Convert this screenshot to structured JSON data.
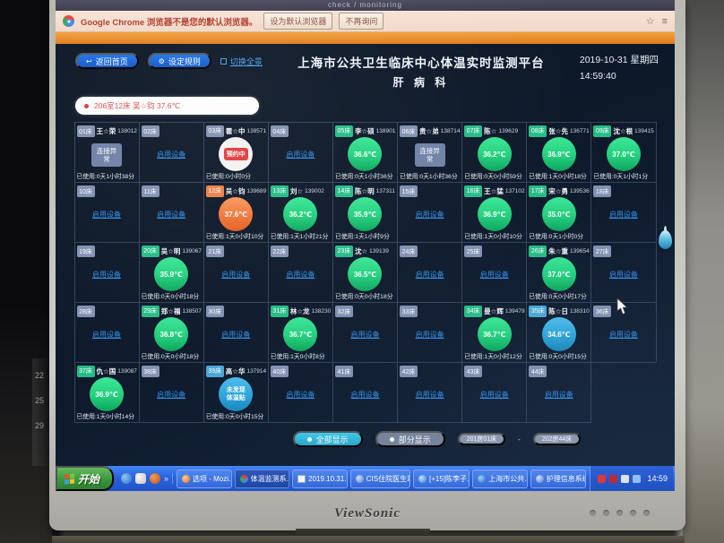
{
  "browser": {
    "tab_hint": "check / monitoring",
    "infobar": {
      "text": "Google Chrome 浏览器不是您的默认浏览器。",
      "set_default_label": "设为默认浏览器",
      "dismiss_label": "不再询问",
      "star_icon": "☆",
      "menu_icon": "≡"
    }
  },
  "header": {
    "home_button": "返回首页",
    "rules_button": "设定规则",
    "toggle_view_link": "切换全景",
    "title_line1": "上海市公共卫生临床中心体温实时监测平台",
    "title_line2": "肝 病 科",
    "date": "2019-10-31 星期四",
    "time": "14:59:40"
  },
  "alert_ticker": {
    "text": "206室12床 吴☆钧 37.6℃"
  },
  "labels": {
    "used": "已使用:",
    "enable_device": "启用设备",
    "conn_error": "连接异常",
    "reserved": "预约中",
    "no_patch_l1": "未发现",
    "no_patch_l2": "体温贴"
  },
  "colors": {
    "accent_blue": "#1d74e8",
    "temp_normal": "#23d07e",
    "temp_high": "#f1763a",
    "temp_low": "#2da5da",
    "alert_red": "#e23c3c",
    "link_blue": "#2f8fe8"
  },
  "beds": [
    {
      "bed": "01床",
      "tag": "slate",
      "state": "error",
      "name": "王☆荣",
      "id": "138012",
      "usage": "0天1小时38分"
    },
    {
      "bed": "02床",
      "tag": "slate",
      "state": "empty"
    },
    {
      "bed": "03床",
      "tag": "slate",
      "state": "reserved",
      "name": "瞿☆中",
      "id": "139571",
      "usage": "0小时0分"
    },
    {
      "bed": "04床",
      "tag": "slate",
      "state": "empty"
    },
    {
      "bed": "05床",
      "tag": "green",
      "state": "temp",
      "name": "李☆硕",
      "id": "138901",
      "temp": "36.6℃",
      "level": "normal",
      "usage": "0天1小时36分"
    },
    {
      "bed": "06床",
      "tag": "slate",
      "state": "error",
      "name": "贵☆弟",
      "id": "138714",
      "usage": "0天1小时36分"
    },
    {
      "bed": "07床",
      "tag": "green",
      "state": "temp",
      "name": "陈☆",
      "id": "139629",
      "temp": "36.2℃",
      "level": "normal",
      "usage": "0天0小时59分"
    },
    {
      "bed": "08床",
      "tag": "green",
      "state": "temp",
      "name": "张☆先",
      "id": "136771",
      "temp": "36.9℃",
      "level": "normal",
      "usage": "1天0小时18分"
    },
    {
      "bed": "09床",
      "tag": "green",
      "state": "temp",
      "name": "沈☆根",
      "id": "139415",
      "temp": "37.0℃",
      "level": "normal",
      "usage": "0天1小时1分"
    },
    {
      "bed": "10床",
      "tag": "slate",
      "state": "empty"
    },
    {
      "bed": "11床",
      "tag": "slate",
      "state": "empty"
    },
    {
      "bed": "12床",
      "tag": "orange",
      "state": "temp",
      "name": "吴☆钧",
      "id": "139689",
      "temp": "37.6℃",
      "level": "high",
      "usage": "1天0小时10分"
    },
    {
      "bed": "13床",
      "tag": "green",
      "state": "temp",
      "name": "刘☆",
      "id": "139002",
      "temp": "36.2℃",
      "level": "normal",
      "usage": "1天1小时21分"
    },
    {
      "bed": "14床",
      "tag": "green",
      "state": "temp",
      "name": "陈☆明",
      "id": "137311",
      "temp": "35.9℃",
      "level": "normal",
      "usage": "1天1小时9分"
    },
    {
      "bed": "15床",
      "tag": "slate",
      "state": "empty"
    },
    {
      "bed": "16床",
      "tag": "green",
      "state": "temp",
      "name": "王☆猛",
      "id": "137102",
      "temp": "36.9℃",
      "level": "normal",
      "usage": "1天0小时10分"
    },
    {
      "bed": "17床",
      "tag": "green",
      "state": "temp",
      "name": "宋☆勇",
      "id": "139536",
      "temp": "35.0℃",
      "level": "normal",
      "usage": "0天1小时0分"
    },
    {
      "bed": "18床",
      "tag": "slate",
      "state": "empty"
    },
    {
      "bed": "19床",
      "tag": "slate",
      "state": "empty"
    },
    {
      "bed": "20床",
      "tag": "green",
      "state": "temp",
      "name": "吴☆明",
      "id": "139067",
      "temp": "35.9℃",
      "level": "normal",
      "usage": "0天0小时18分"
    },
    {
      "bed": "21床",
      "tag": "slate",
      "state": "empty"
    },
    {
      "bed": "22床",
      "tag": "slate",
      "state": "empty"
    },
    {
      "bed": "23床",
      "tag": "green",
      "state": "temp",
      "name": "沈☆",
      "id": "139139",
      "temp": "36.5℃",
      "level": "normal",
      "usage": "0天0小时18分"
    },
    {
      "bed": "24床",
      "tag": "slate",
      "state": "empty"
    },
    {
      "bed": "25床",
      "tag": "slate",
      "state": "empty"
    },
    {
      "bed": "26床",
      "tag": "green",
      "state": "temp",
      "name": "朱☆重",
      "id": "139654",
      "temp": "37.0℃",
      "level": "normal",
      "usage": "0天0小时17分"
    },
    {
      "bed": "27床",
      "tag": "slate",
      "state": "empty"
    },
    {
      "bed": "28床",
      "tag": "slate",
      "state": "empty"
    },
    {
      "bed": "29床",
      "tag": "green",
      "state": "temp",
      "name": "郑☆福",
      "id": "138507",
      "temp": "36.8℃",
      "level": "normal",
      "usage": "0天0小时18分"
    },
    {
      "bed": "30床",
      "tag": "slate",
      "state": "empty"
    },
    {
      "bed": "31床",
      "tag": "green",
      "state": "temp",
      "name": "林☆龙",
      "id": "138230",
      "temp": "36.7℃",
      "level": "normal",
      "usage": "1天0小时8分"
    },
    {
      "bed": "32床",
      "tag": "slate",
      "state": "empty"
    },
    {
      "bed": "33床",
      "tag": "slate",
      "state": "empty"
    },
    {
      "bed": "34床",
      "tag": "green",
      "state": "temp",
      "name": "曼☆辉",
      "id": "139479",
      "temp": "36.7℃",
      "level": "normal",
      "usage": "1天0小时12分"
    },
    {
      "bed": "35床",
      "tag": "blue",
      "state": "temp",
      "name": "陈☆日",
      "id": "138310",
      "temp": "34.6℃",
      "level": "low",
      "usage": "0天0小时15分"
    },
    {
      "bed": "36床",
      "tag": "slate",
      "state": "empty"
    },
    {
      "bed": "37床",
      "tag": "green",
      "state": "temp",
      "name": "仇☆国",
      "id": "139087",
      "temp": "36.9℃",
      "level": "normal",
      "usage": "1天0小时14分"
    },
    {
      "bed": "38床",
      "tag": "slate",
      "state": "empty"
    },
    {
      "bed": "39床",
      "tag": "blue",
      "state": "nopatch",
      "name": "高☆华",
      "id": "137914",
      "usage": "0天0小时15分"
    },
    {
      "bed": "40床",
      "tag": "slate",
      "state": "empty"
    },
    {
      "bed": "41床",
      "tag": "slate",
      "state": "empty"
    },
    {
      "bed": "42床",
      "tag": "slate",
      "state": "empty"
    },
    {
      "bed": "43床",
      "tag": "slate",
      "state": "empty"
    },
    {
      "bed": "44床",
      "tag": "slate",
      "state": "empty"
    }
  ],
  "footer": {
    "show_all": "全部显示",
    "show_partial": "部分显示",
    "range_start": "201房01床",
    "range_dash": "-",
    "range_end": "202房44床"
  },
  "taskbar": {
    "start": "开始",
    "quick_more": "»",
    "items": [
      {
        "label": "选项 - Mozi...",
        "icon": "firefox",
        "active": false
      },
      {
        "label": "体温监测系...",
        "icon": "chrome",
        "active": true
      },
      {
        "label": "2019.10.31...",
        "icon": "notepad",
        "active": false
      },
      {
        "label": "CIS住院医生站",
        "icon": "app",
        "active": false
      },
      {
        "label": "[+15]陈李子...",
        "icon": "chat",
        "active": false
      },
      {
        "label": "上海市公共...",
        "icon": "ie",
        "active": false
      },
      {
        "label": "护理信息系统",
        "icon": "app",
        "active": false
      }
    ],
    "tray_time": "14:59"
  },
  "monitor": {
    "brand": "ViewSonic"
  },
  "surroundings": {
    "calendar_numbers": [
      "22",
      "25",
      "29"
    ]
  }
}
